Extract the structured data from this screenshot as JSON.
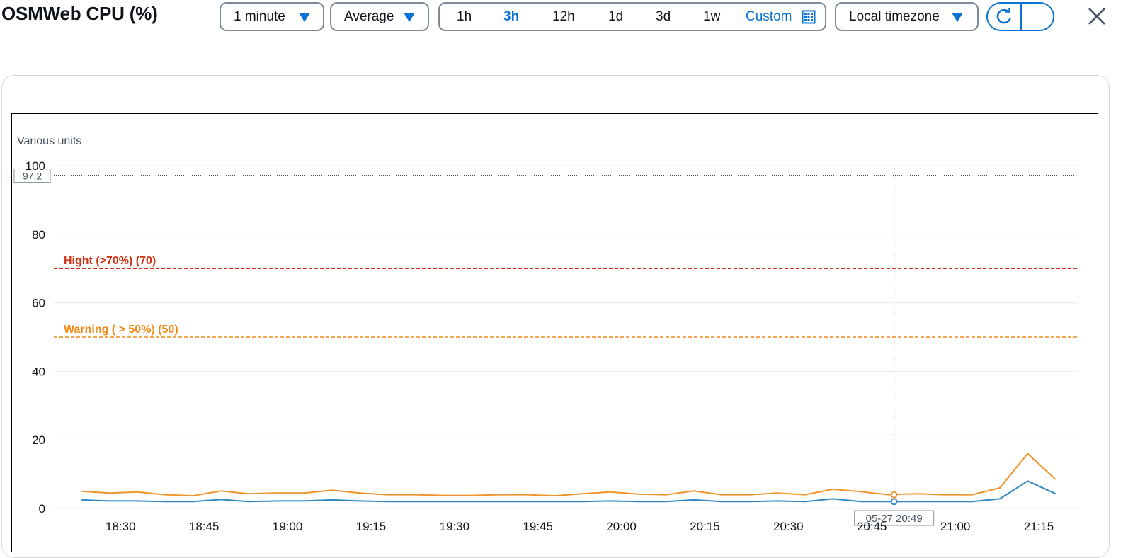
{
  "header": {
    "title": "OSMWeb CPU (%)"
  },
  "controls": {
    "period": "1 minute",
    "statistic": "Average",
    "ranges": [
      "1h",
      "3h",
      "12h",
      "1d",
      "3d",
      "1w"
    ],
    "active_range": "3h",
    "custom_label": "Custom",
    "timezone": "Local timezone"
  },
  "icons": {
    "caret": "caret-down-icon",
    "calendar": "calendar-icon",
    "refresh": "refresh-icon",
    "close": "close-icon"
  },
  "colors": {
    "accent": "#0972d3",
    "series_orange": "#f0942c",
    "series_blue": "#2e87bf",
    "high_threshold": "#d13212",
    "warning_threshold": "#f18a16"
  },
  "chart_data": {
    "type": "line",
    "ylabel": "Various units",
    "ylim": [
      0,
      100
    ],
    "yticks": [
      0,
      20,
      40,
      60,
      80,
      100
    ],
    "xtick_labels": [
      "18:30",
      "18:45",
      "19:00",
      "19:15",
      "19:30",
      "19:45",
      "20:00",
      "20:15",
      "20:30",
      "20:45",
      "21:00",
      "21:15"
    ],
    "grid": true,
    "x": [
      "18:23",
      "18:28",
      "18:33",
      "18:38",
      "18:43",
      "18:48",
      "18:53",
      "18:58",
      "19:03",
      "19:08",
      "19:13",
      "19:18",
      "19:23",
      "19:28",
      "19:33",
      "19:38",
      "19:43",
      "19:48",
      "19:53",
      "19:58",
      "20:03",
      "20:08",
      "20:13",
      "20:18",
      "20:23",
      "20:28",
      "20:33",
      "20:38",
      "20:43",
      "20:48",
      "20:53",
      "20:58",
      "21:03",
      "21:08",
      "21:13",
      "21:18"
    ],
    "series": [
      {
        "color": "#f0942c",
        "values": [
          5.0,
          4.5,
          4.8,
          4.0,
          3.7,
          5.1,
          4.3,
          4.5,
          4.5,
          5.3,
          4.5,
          4.0,
          4.0,
          3.8,
          3.8,
          4.0,
          4.0,
          3.7,
          4.3,
          4.8,
          4.2,
          4.0,
          5.1,
          4.0,
          4.0,
          4.5,
          4.0,
          5.6,
          4.9,
          4.0,
          4.3,
          4.0,
          4.0,
          6.0,
          16.0,
          8.5
        ]
      },
      {
        "color": "#2e87bf",
        "values": [
          2.5,
          2.2,
          2.2,
          2.0,
          2.0,
          2.6,
          2.0,
          2.2,
          2.2,
          2.5,
          2.2,
          2.0,
          2.0,
          2.0,
          2.0,
          2.0,
          2.0,
          2.0,
          2.0,
          2.2,
          2.0,
          2.0,
          2.5,
          2.0,
          2.0,
          2.2,
          2.0,
          2.8,
          2.0,
          2.0,
          2.0,
          2.0,
          2.0,
          2.8,
          8.0,
          4.3
        ]
      }
    ],
    "thresholds": [
      {
        "label": "Hight (>70%) (70)",
        "value": 70,
        "color": "#d13212"
      },
      {
        "label": "Warning ( > 50%) (50)",
        "value": 50,
        "color": "#f18a16"
      }
    ],
    "hover": {
      "y_readout": "97.2",
      "x_readout": "05-27 20:49",
      "y_value": 97.2,
      "x_value": "20:49"
    }
  }
}
